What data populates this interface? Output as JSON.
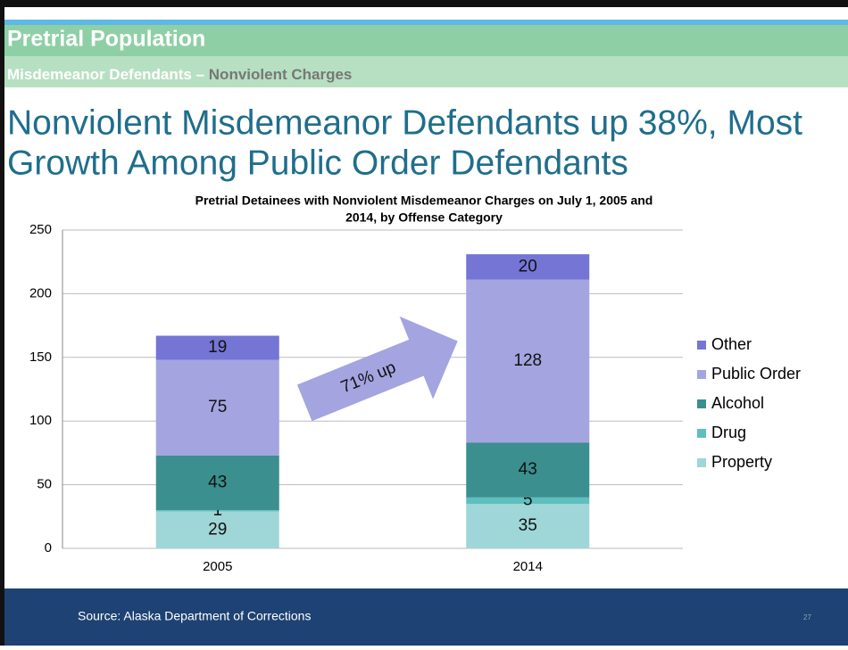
{
  "slide": {
    "header": "Pretrial Population",
    "subheader": [
      "Misdemeanor Defendants – ",
      "Nonviolent Charges"
    ],
    "title_lines": [
      "Nonviolent Misdemeanor Defendants up 38%, Most",
      "Growth Among Public Order Defendants"
    ],
    "source": "Source: Alaska Department of Corrections",
    "page": "27"
  },
  "chart_data": {
    "type": "stacked_bar",
    "title_lines": [
      "Pretrial  Detainees with Nonviolent Misdemeanor Charges on July 1, 2005 and",
      "2014, by Offense Category"
    ],
    "categories": [
      "2005",
      "2014"
    ],
    "series": [
      {
        "name": "Property",
        "color": "#9fd6d8",
        "values": [
          29,
          35
        ]
      },
      {
        "name": "Drug",
        "color": "#5fbfbf",
        "values": [
          1,
          5
        ]
      },
      {
        "name": "Alcohol",
        "color": "#3b8f8f",
        "values": [
          43,
          43
        ]
      },
      {
        "name": "Public Order",
        "color": "#a4a4e0",
        "values": [
          75,
          128
        ]
      },
      {
        "name": "Other",
        "color": "#7575d6",
        "values": [
          19,
          20
        ]
      }
    ],
    "annotation": "71% up",
    "ylim": [
      0,
      250
    ],
    "yticks": [
      0,
      50,
      100,
      150,
      200,
      250
    ],
    "grid": true,
    "legend": "right"
  }
}
